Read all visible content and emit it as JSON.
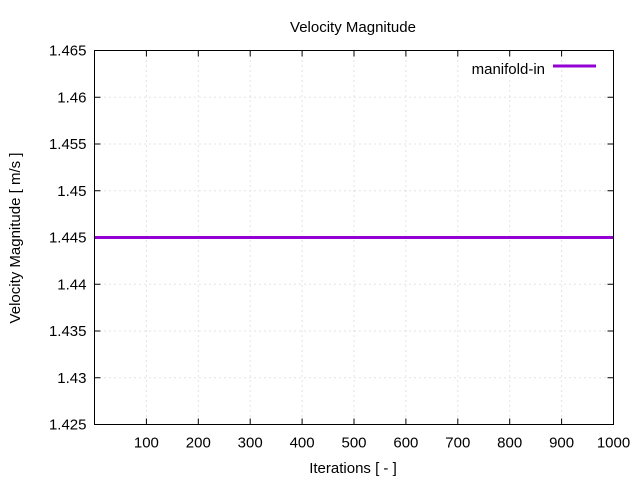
{
  "chart_data": {
    "type": "line",
    "title": "Velocity Magnitude",
    "xlabel": "Iterations [ - ]",
    "ylabel": "Velocity Magnitude [ m/s ]",
    "xlim": [
      0,
      1000
    ],
    "ylim": [
      1.425,
      1.465
    ],
    "xticks": [
      100,
      200,
      300,
      400,
      500,
      600,
      700,
      800,
      900,
      1000
    ],
    "yticks": [
      1.425,
      1.43,
      1.435,
      1.44,
      1.445,
      1.45,
      1.455,
      1.46,
      1.465
    ],
    "xtick_labels": [
      "100",
      "200",
      "300",
      "400",
      "500",
      "600",
      "700",
      "800",
      "900",
      "1000"
    ],
    "ytick_labels": [
      "1.425",
      "1.43",
      "1.435",
      "1.44",
      "1.445",
      "1.45",
      "1.455",
      "1.46",
      "1.465"
    ],
    "grid": true,
    "legend_position": "top-right",
    "series": [
      {
        "name": "manifold-in",
        "color": "#9400d3",
        "x": [
          0,
          100,
          200,
          300,
          400,
          500,
          600,
          700,
          800,
          900,
          1000
        ],
        "y": [
          1.445,
          1.445,
          1.445,
          1.445,
          1.445,
          1.445,
          1.445,
          1.445,
          1.445,
          1.445,
          1.445
        ]
      }
    ]
  }
}
